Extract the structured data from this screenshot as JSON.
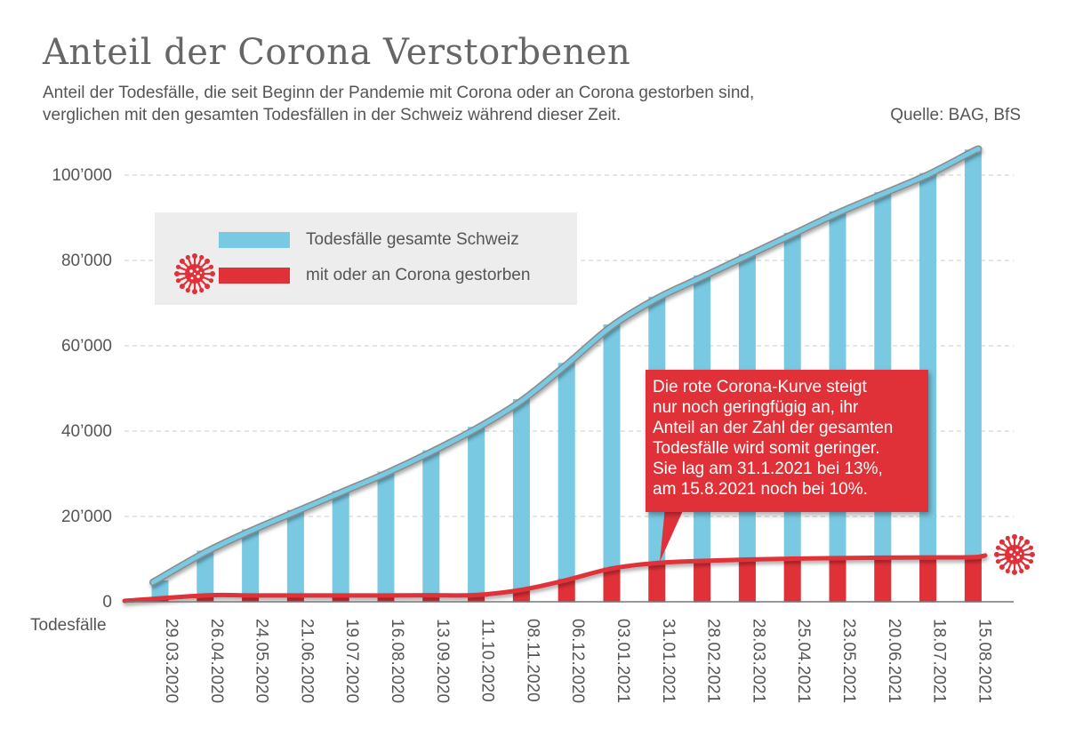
{
  "title": "Anteil der Corona Verstorbenen",
  "subtitle": [
    "Anteil der Todesfälle, die seit Beginn der Pandemie mit Corona oder an Corona gestorben sind,",
    "verglichen mit den gesamten Todesfällen in der Schweiz während dieser Zeit."
  ],
  "source": "Quelle: BAG, BfS",
  "callout": [
    "Die rote Corona-Kurve steigt",
    "nur noch geringfügig an, ihr",
    "Anteil an der Zahl der gesamten",
    "Todesfälle wird somit geringer.",
    "Sie lag am 31.1.2021 bei 13%,",
    "am 15.8.2021 noch bei 10%."
  ],
  "colors": {
    "total": "#79c9e3",
    "corona": "#e03138",
    "grid": "#cccccc",
    "text": "#555555"
  },
  "chart_data": {
    "type": "bar",
    "ylabel": "Todesfälle",
    "ylim": [
      0,
      100000
    ],
    "yticks": [
      0,
      20000,
      40000,
      60000,
      80000,
      100000
    ],
    "ytick_labels": [
      "0",
      "20’000",
      "40’000",
      "60’000",
      "80’000",
      "100’000"
    ],
    "grid": true,
    "legend_position": "top-left",
    "categories": [
      "29.03.2020",
      "26.04.2020",
      "24.05.2020",
      "21.06.2020",
      "19.07.2020",
      "16.08.2020",
      "13.09.2020",
      "11.10.2020",
      "08.11.2020",
      "06.12.2020",
      "03.01.2021",
      "31.01.2021",
      "28.02.2021",
      "28.03.2021",
      "25.04.2021",
      "23.05.2021",
      "20.06.2021",
      "18.07.2021",
      "15.08.2021"
    ],
    "series": [
      {
        "name": "Todesfälle gesamte Schweiz",
        "color": "#79c9e3",
        "values": [
          5000,
          12000,
          17000,
          21500,
          26000,
          30500,
          35500,
          41000,
          47500,
          56000,
          65000,
          71500,
          76500,
          81500,
          86500,
          91500,
          96000,
          100500,
          106000
        ]
      },
      {
        "name": "mit oder an Corona gestorben",
        "color": "#e03138",
        "values": [
          600,
          1700,
          1700,
          1700,
          1700,
          1700,
          1750,
          1800,
          3000,
          5300,
          8000,
          9300,
          9800,
          10100,
          10300,
          10450,
          10550,
          10600,
          10650
        ]
      }
    ]
  }
}
